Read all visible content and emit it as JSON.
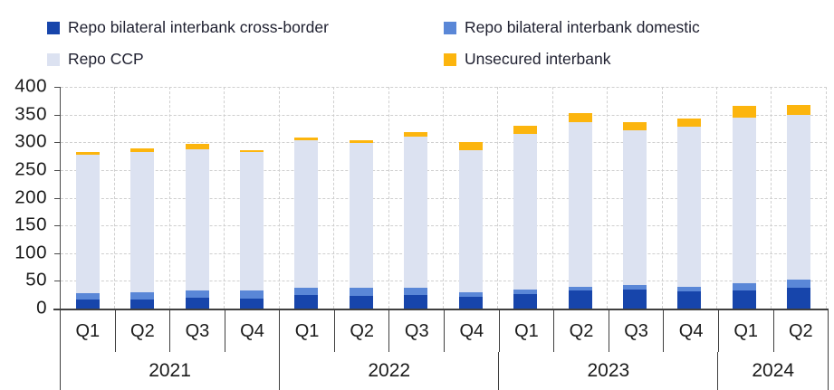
{
  "legend": {
    "items": [
      {
        "label": "Repo bilateral interbank cross-border",
        "color": "#1745AB"
      },
      {
        "label": "Repo bilateral interbank domestic",
        "color": "#5A87D7"
      },
      {
        "label": "Repo CCP",
        "color": "#DCE2F1"
      },
      {
        "label": "Unsecured interbank",
        "color": "#FCB50E"
      }
    ]
  },
  "chart_data": {
    "type": "bar",
    "stacked": true,
    "title": "",
    "xlabel": "",
    "ylabel": "",
    "ylim": [
      0,
      400
    ],
    "y_ticks": [
      400,
      350,
      300,
      250,
      200,
      150,
      100,
      50,
      0
    ],
    "grid": "dashed horizontal and vertical gridlines",
    "legend_position": "top",
    "categories": [
      "Q1",
      "Q2",
      "Q3",
      "Q4",
      "Q1",
      "Q2",
      "Q3",
      "Q4",
      "Q1",
      "Q2",
      "Q3",
      "Q4",
      "Q1",
      "Q2"
    ],
    "year_groups": [
      {
        "label": "2021",
        "span": 4
      },
      {
        "label": "2022",
        "span": 4
      },
      {
        "label": "2023",
        "span": 4
      },
      {
        "label": "2024",
        "span": 2
      }
    ],
    "series": [
      {
        "name": "Repo bilateral interbank cross-border",
        "color": "#1745AB",
        "values": [
          16,
          17,
          20,
          18,
          24,
          23,
          25,
          22,
          26,
          33,
          35,
          31,
          33,
          38
        ]
      },
      {
        "name": "Repo bilateral interbank domestic",
        "color": "#5A87D7",
        "values": [
          12,
          13,
          13,
          14,
          13,
          15,
          13,
          8,
          8,
          7,
          7,
          9,
          12,
          14
        ]
      },
      {
        "name": "Repo CCP",
        "color": "#DCE2F1",
        "values": [
          250,
          252,
          255,
          250,
          266,
          260,
          272,
          255,
          281,
          297,
          280,
          288,
          300,
          298
        ]
      },
      {
        "name": "Unsecured interbank",
        "color": "#FCB50E",
        "values": [
          4,
          7,
          9,
          4,
          5,
          6,
          8,
          16,
          15,
          15,
          15,
          15,
          20,
          17
        ]
      }
    ],
    "totals": [
      282,
      289,
      297,
      286,
      308,
      304,
      318,
      301,
      330,
      352,
      337,
      343,
      365,
      367
    ]
  }
}
